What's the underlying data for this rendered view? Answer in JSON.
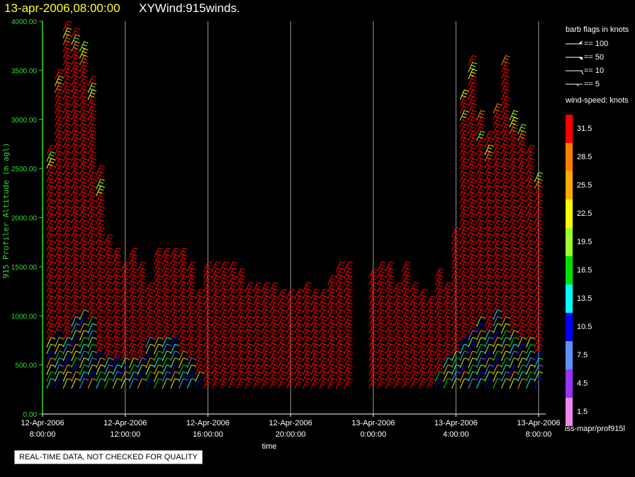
{
  "title": {
    "date": "13-apr-2006,08:00:00",
    "name": "XYWind:915winds."
  },
  "chart_data": {
    "type": "wind-barb time-height",
    "ylabel": "915 Profiler Altitude (m agl)",
    "xlabel": "time",
    "ylim": [
      0,
      4000
    ],
    "yticks": [
      "0.00",
      "500.00",
      "1000.00",
      "1500.00",
      "2000.00",
      "2500.00",
      "3000.00",
      "3500.00",
      "4000.00"
    ],
    "xticks": [
      {
        "line1": "12-Apr-2006",
        "line2": "8:00:00"
      },
      {
        "line1": "12-Apr-2006",
        "line2": "12:00:00"
      },
      {
        "line1": "12-Apr-2006",
        "line2": "16:00:00"
      },
      {
        "line1": "12-Apr-2006",
        "line2": "20:00:00"
      },
      {
        "line1": "13-Apr-2006",
        "line2": "0:00:00"
      },
      {
        "line1": "13-Apr-2006",
        "line2": "4:00:00"
      },
      {
        "line1": "13-Apr-2006",
        "line2": "8:00:00"
      }
    ],
    "xlim_hours": [
      0,
      24
    ],
    "profiles": [
      {
        "t": 0.2,
        "top": 2700,
        "fast_below": 700
      },
      {
        "t": 0.6,
        "top": 3450,
        "fast_below": 800
      },
      {
        "t": 1.0,
        "top": 3900,
        "fast_below": 700
      },
      {
        "t": 1.4,
        "top": 3850,
        "fast_below": 900
      },
      {
        "t": 1.8,
        "top": 3700,
        "fast_below": 1000
      },
      {
        "t": 2.2,
        "top": 3400,
        "fast_below": 900
      },
      {
        "t": 2.6,
        "top": 2450,
        "fast_below": 600
      },
      {
        "t": 3.0,
        "top": 1750,
        "fast_below": 500
      },
      {
        "t": 3.4,
        "top": 1600,
        "fast_below": 500
      },
      {
        "t": 3.8,
        "top": 1500,
        "fast_below": 500
      },
      {
        "t": 4.2,
        "top": 1650,
        "fast_below": 500
      },
      {
        "t": 4.6,
        "top": 1500,
        "fast_below": 500
      },
      {
        "t": 5.0,
        "top": 1300,
        "fast_below": 700
      },
      {
        "t": 5.4,
        "top": 1600,
        "fast_below": 700
      },
      {
        "t": 5.8,
        "top": 1650,
        "fast_below": 700
      },
      {
        "t": 6.2,
        "top": 1650,
        "fast_below": 700
      },
      {
        "t": 6.6,
        "top": 1600,
        "fast_below": 600
      },
      {
        "t": 7.0,
        "top": 1500,
        "fast_below": 500
      },
      {
        "t": 7.4,
        "top": 1200,
        "fast_below": 400
      },
      {
        "t": 7.8,
        "top": 1500,
        "fast_below": 0
      },
      {
        "t": 8.2,
        "top": 1500,
        "fast_below": 0
      },
      {
        "t": 8.6,
        "top": 1450,
        "fast_below": 0
      },
      {
        "t": 9.0,
        "top": 1450,
        "fast_below": 0
      },
      {
        "t": 9.4,
        "top": 1400,
        "fast_below": 0
      },
      {
        "t": 9.8,
        "top": 1300,
        "fast_below": 0
      },
      {
        "t": 10.2,
        "top": 1250,
        "fast_below": 0
      },
      {
        "t": 10.6,
        "top": 1250,
        "fast_below": 0
      },
      {
        "t": 11.0,
        "top": 1250,
        "fast_below": 0
      },
      {
        "t": 11.4,
        "top": 1200,
        "fast_below": 0
      },
      {
        "t": 11.8,
        "top": 1200,
        "fast_below": 0
      },
      {
        "t": 12.2,
        "top": 1200,
        "fast_below": 0
      },
      {
        "t": 12.6,
        "top": 1250,
        "fast_below": 0
      },
      {
        "t": 13.0,
        "top": 1200,
        "fast_below": 0
      },
      {
        "t": 13.4,
        "top": 1200,
        "fast_below": 0
      },
      {
        "t": 13.8,
        "top": 1350,
        "fast_below": 0
      },
      {
        "t": 14.2,
        "top": 1450,
        "fast_below": 0
      },
      {
        "t": 14.6,
        "top": 1500,
        "fast_below": 0
      },
      {
        "t": 15.8,
        "top": 1400,
        "fast_below": 0
      },
      {
        "t": 16.2,
        "top": 1500,
        "fast_below": 0
      },
      {
        "t": 16.6,
        "top": 1500,
        "fast_below": 0
      },
      {
        "t": 17.0,
        "top": 1300,
        "fast_below": 0
      },
      {
        "t": 17.4,
        "top": 1450,
        "fast_below": 0
      },
      {
        "t": 17.8,
        "top": 1250,
        "fast_below": 0
      },
      {
        "t": 18.2,
        "top": 1200,
        "fast_below": 0
      },
      {
        "t": 18.6,
        "top": 1150,
        "fast_below": 0
      },
      {
        "t": 19.0,
        "top": 1400,
        "fast_below": 400
      },
      {
        "t": 19.4,
        "top": 1250,
        "fast_below": 500
      },
      {
        "t": 19.8,
        "top": 1800,
        "fast_below": 600
      },
      {
        "t": 20.2,
        "top": 3200,
        "fast_below": 700
      },
      {
        "t": 20.6,
        "top": 3600,
        "fast_below": 800
      },
      {
        "t": 21.0,
        "top": 3000,
        "fast_below": 900
      },
      {
        "t": 21.4,
        "top": 2800,
        "fast_below": 800
      },
      {
        "t": 21.8,
        "top": 3100,
        "fast_below": 1000
      },
      {
        "t": 22.2,
        "top": 3600,
        "fast_below": 900
      },
      {
        "t": 22.6,
        "top": 3000,
        "fast_below": 800
      },
      {
        "t": 23.0,
        "top": 2900,
        "fast_below": 700
      },
      {
        "t": 23.4,
        "top": 2700,
        "fast_below": 700
      },
      {
        "t": 23.8,
        "top": 2400,
        "fast_below": 600
      }
    ]
  },
  "legend": {
    "flags_title": "barb flags in knots",
    "flags": [
      {
        "label": "== 100"
      },
      {
        "label": "== 50"
      },
      {
        "label": "== 10"
      },
      {
        "label": "== 5"
      }
    ],
    "speed_title": "wind-speed: knots",
    "colorbar": [
      {
        "label": "31.5",
        "color": "#ff0000"
      },
      {
        "label": "28.5",
        "color": "#ff8000"
      },
      {
        "label": "25.5",
        "color": "#ffaa00"
      },
      {
        "label": "22.5",
        "color": "#ffff00"
      },
      {
        "label": "19.5",
        "color": "#a0ff30"
      },
      {
        "label": "16.5",
        "color": "#00e000"
      },
      {
        "label": "13.5",
        "color": "#00ffff"
      },
      {
        "label": "10.5",
        "color": "#0000ff"
      },
      {
        "label": "7.5",
        "color": "#6090ff"
      },
      {
        "label": "4.5",
        "color": "#9933ff"
      },
      {
        "label": "1.5",
        "color": "#ee88ee"
      }
    ],
    "source": "iss-mapr/prof915l"
  },
  "disclaimer": "REAL-TIME DATA, NOT CHECKED FOR QUALITY"
}
